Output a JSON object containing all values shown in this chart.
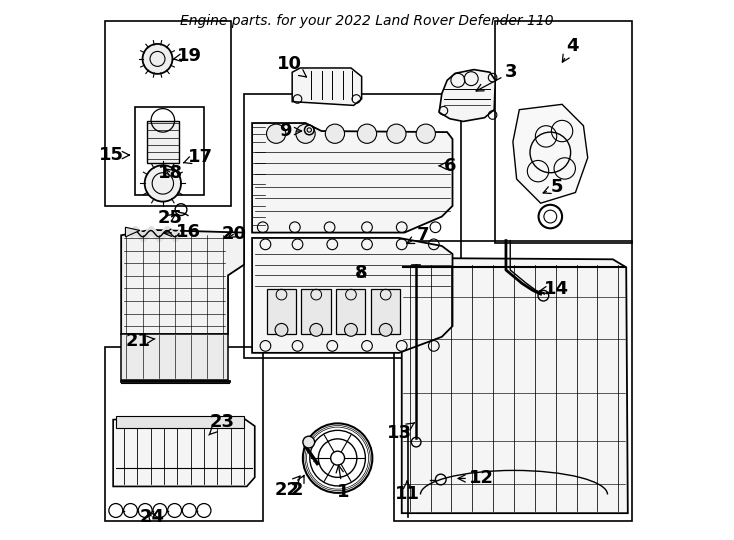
{
  "title": "Engine parts. for your 2022 Land Rover Defender 110",
  "bg_color": "#ffffff",
  "line_color": "#000000",
  "font_size_label": 13,
  "font_size_title": 10,
  "label_positions": {
    "1": [
      0.455,
      0.085,
      0.445,
      0.145
    ],
    "2": [
      0.368,
      0.088,
      0.387,
      0.125
    ],
    "3": [
      0.77,
      0.87,
      0.695,
      0.83
    ],
    "4": [
      0.885,
      0.92,
      0.86,
      0.88
    ],
    "5": [
      0.855,
      0.655,
      0.82,
      0.64
    ],
    "6": [
      0.655,
      0.695,
      0.625,
      0.695
    ],
    "7": [
      0.605,
      0.565,
      0.565,
      0.545
    ],
    "8": [
      0.49,
      0.495,
      0.49,
      0.51
    ],
    "9": [
      0.348,
      0.76,
      0.388,
      0.76
    ],
    "10": [
      0.355,
      0.885,
      0.395,
      0.855
    ],
    "11": [
      0.575,
      0.08,
      0.575,
      0.115
    ],
    "12": [
      0.715,
      0.11,
      0.66,
      0.11
    ],
    "13": [
      0.56,
      0.195,
      0.59,
      0.215
    ],
    "14": [
      0.855,
      0.465,
      0.82,
      0.46
    ],
    "15": [
      0.022,
      0.715,
      0.058,
      0.715
    ],
    "16": [
      0.165,
      0.572,
      0.11,
      0.568
    ],
    "17": [
      0.188,
      0.712,
      0.155,
      0.7
    ],
    "18": [
      0.133,
      0.682,
      0.115,
      0.695
    ],
    "19": [
      0.168,
      0.9,
      0.128,
      0.893
    ],
    "20": [
      0.252,
      0.568,
      0.232,
      0.555
    ],
    "21": [
      0.072,
      0.368,
      0.112,
      0.372
    ],
    "22": [
      0.35,
      0.088,
      0.382,
      0.122
    ],
    "23": [
      0.228,
      0.215,
      0.198,
      0.185
    ],
    "24": [
      0.098,
      0.038,
      0.082,
      0.055
    ],
    "25": [
      0.132,
      0.598,
      0.15,
      0.61
    ]
  }
}
